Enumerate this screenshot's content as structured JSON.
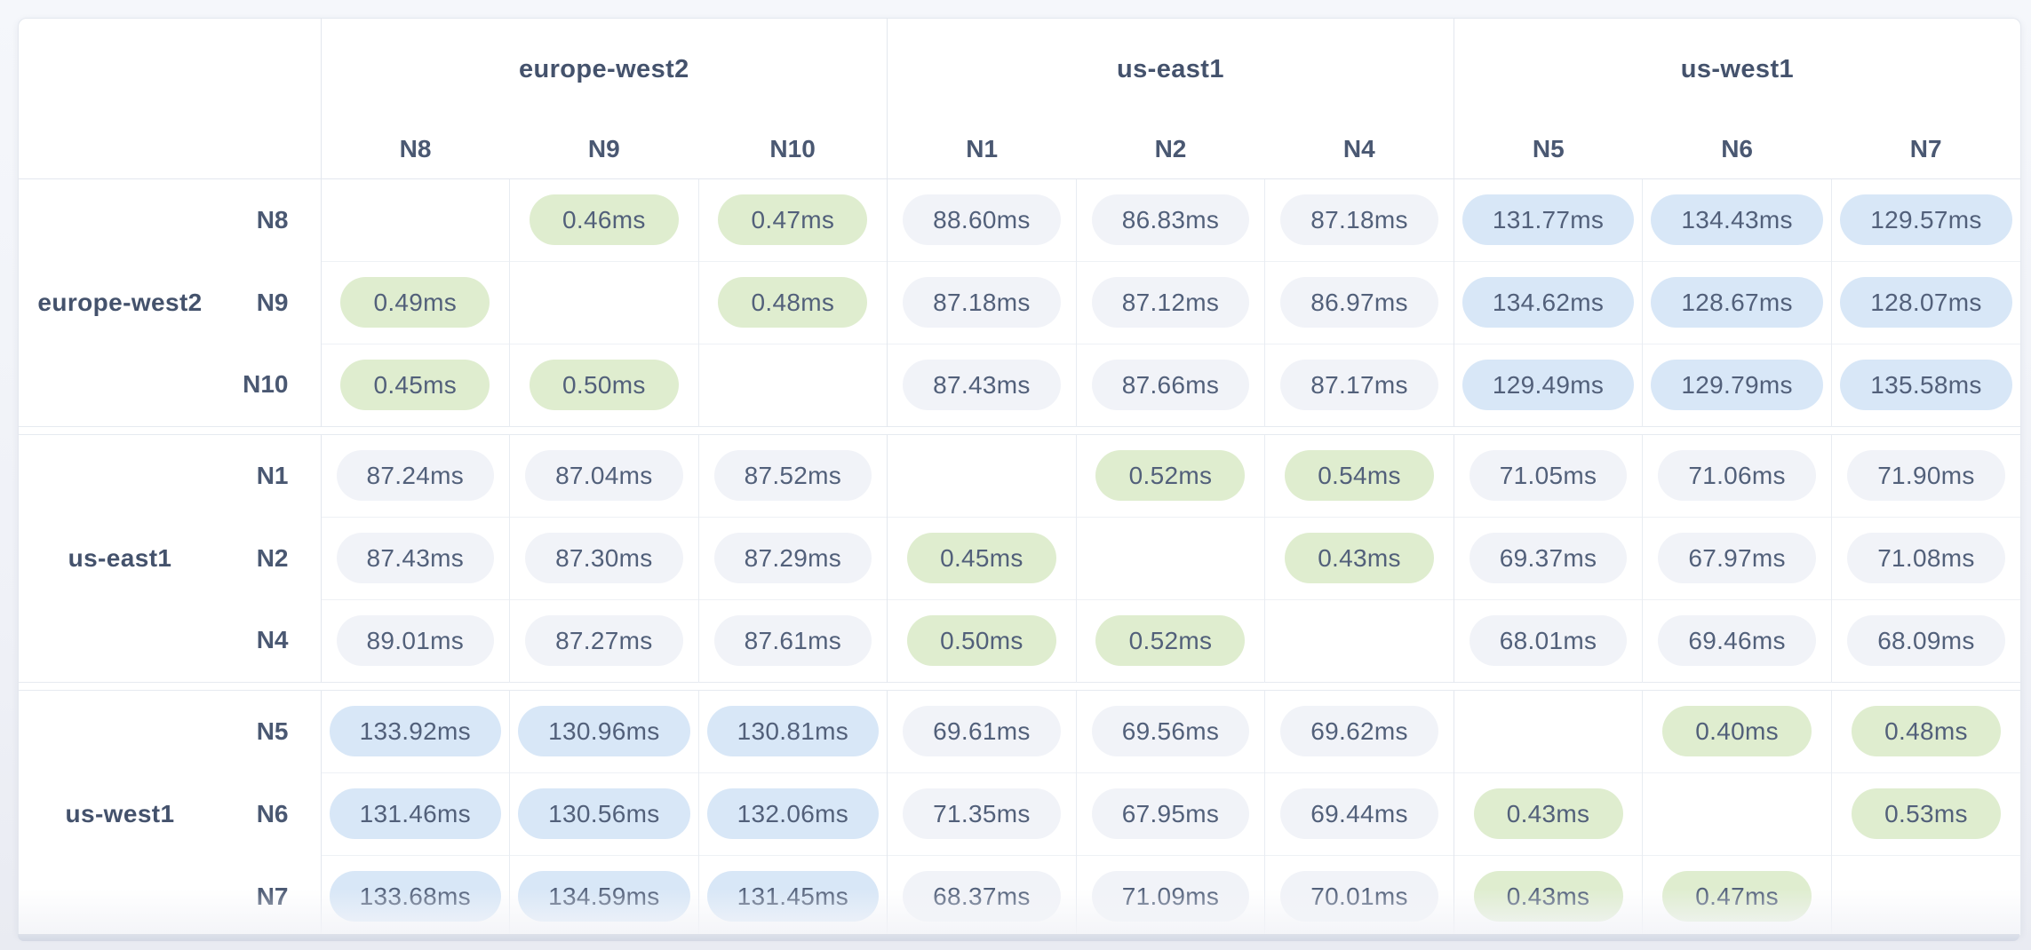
{
  "table": {
    "unit": "ms",
    "groups": [
      {
        "name": "europe-west2",
        "nodes": [
          "N8",
          "N9",
          "N10"
        ]
      },
      {
        "name": "us-east1",
        "nodes": [
          "N1",
          "N2",
          "N4"
        ]
      },
      {
        "name": "us-west1",
        "nodes": [
          "N5",
          "N6",
          "N7"
        ]
      }
    ],
    "rows": [
      {
        "group": "europe-west2",
        "node": "N8",
        "values": [
          null,
          "0.46ms",
          "0.47ms",
          "88.60ms",
          "86.83ms",
          "87.18ms",
          "131.77ms",
          "134.43ms",
          "129.57ms"
        ]
      },
      {
        "group": "europe-west2",
        "node": "N9",
        "values": [
          "0.49ms",
          null,
          "0.48ms",
          "87.18ms",
          "87.12ms",
          "86.97ms",
          "134.62ms",
          "128.67ms",
          "128.07ms"
        ]
      },
      {
        "group": "europe-west2",
        "node": "N10",
        "values": [
          "0.45ms",
          "0.50ms",
          null,
          "87.43ms",
          "87.66ms",
          "87.17ms",
          "129.49ms",
          "129.79ms",
          "135.58ms"
        ]
      },
      {
        "group": "us-east1",
        "node": "N1",
        "values": [
          "87.24ms",
          "87.04ms",
          "87.52ms",
          null,
          "0.52ms",
          "0.54ms",
          "71.05ms",
          "71.06ms",
          "71.90ms"
        ]
      },
      {
        "group": "us-east1",
        "node": "N2",
        "values": [
          "87.43ms",
          "87.30ms",
          "87.29ms",
          "0.45ms",
          null,
          "0.43ms",
          "69.37ms",
          "67.97ms",
          "71.08ms"
        ]
      },
      {
        "group": "us-east1",
        "node": "N4",
        "values": [
          "89.01ms",
          "87.27ms",
          "87.61ms",
          "0.50ms",
          "0.52ms",
          null,
          "68.01ms",
          "69.46ms",
          "68.09ms"
        ]
      },
      {
        "group": "us-west1",
        "node": "N5",
        "values": [
          "133.92ms",
          "130.96ms",
          "130.81ms",
          "69.61ms",
          "69.56ms",
          "69.62ms",
          null,
          "0.40ms",
          "0.48ms"
        ]
      },
      {
        "group": "us-west1",
        "node": "N6",
        "values": [
          "131.46ms",
          "130.56ms",
          "132.06ms",
          "71.35ms",
          "67.95ms",
          "69.44ms",
          "0.43ms",
          null,
          "0.53ms"
        ]
      },
      {
        "group": "us-west1",
        "node": "N7",
        "values": [
          "133.68ms",
          "134.59ms",
          "131.45ms",
          "68.37ms",
          "71.09ms",
          "70.01ms",
          "0.43ms",
          "0.47ms",
          null
        ]
      }
    ]
  },
  "colors": {
    "low_latency_pill": "#dfedcf",
    "medium_latency_pill": "#f1f3f8",
    "high_latency_pill": "#d8e7f7",
    "pill_text": "#52607a",
    "header_text": "#47556e",
    "scrollbar_track": "#d6dae5"
  }
}
